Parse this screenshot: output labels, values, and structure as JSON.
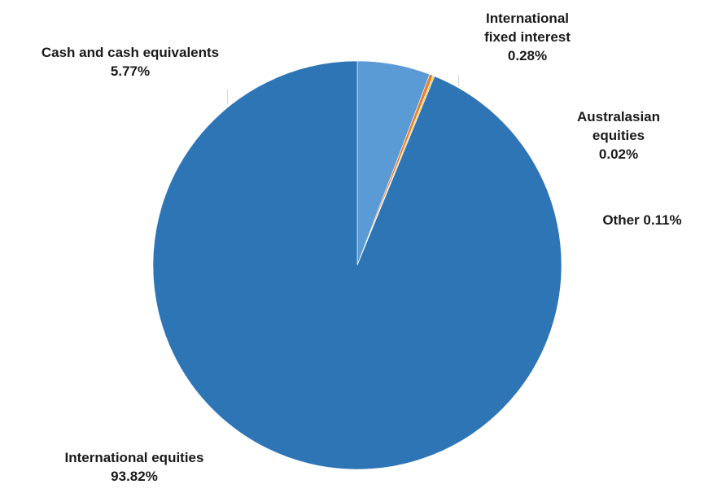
{
  "chart_data": {
    "type": "pie",
    "title": "",
    "slices": [
      {
        "name": "Cash and cash equivalents",
        "value": 5.77,
        "value_label": "5.77%",
        "color": "#5b9bd5"
      },
      {
        "name": "International fixed interest",
        "value": 0.28,
        "value_label": "0.28%",
        "color": "#ed7d31"
      },
      {
        "name": "Australasian equities",
        "value": 0.02,
        "value_label": "0.02%",
        "color": "#a5a5a5"
      },
      {
        "name": "Other",
        "value": 0.11,
        "value_label": "0.11%",
        "color": "#ffc000"
      },
      {
        "name": "International equities",
        "value": 93.82,
        "value_label": "93.82%",
        "color": "#2e75b6"
      }
    ],
    "start_angle_deg": 0,
    "direction": "clockwise",
    "legend": "none",
    "data_labels": "outside"
  },
  "labels": {
    "cash": {
      "line1": "Cash and cash equivalents",
      "line2": "5.77%"
    },
    "intl_fixed": {
      "line1": "International",
      "line2": "fixed interest",
      "line3": "0.28%"
    },
    "australasian": {
      "line1": "Australasian",
      "line2": "equities",
      "line3": "0.02%"
    },
    "other": {
      "line1": "Other 0.11%"
    },
    "intl_equities": {
      "line1": "International equities",
      "line2": "93.82%"
    }
  }
}
